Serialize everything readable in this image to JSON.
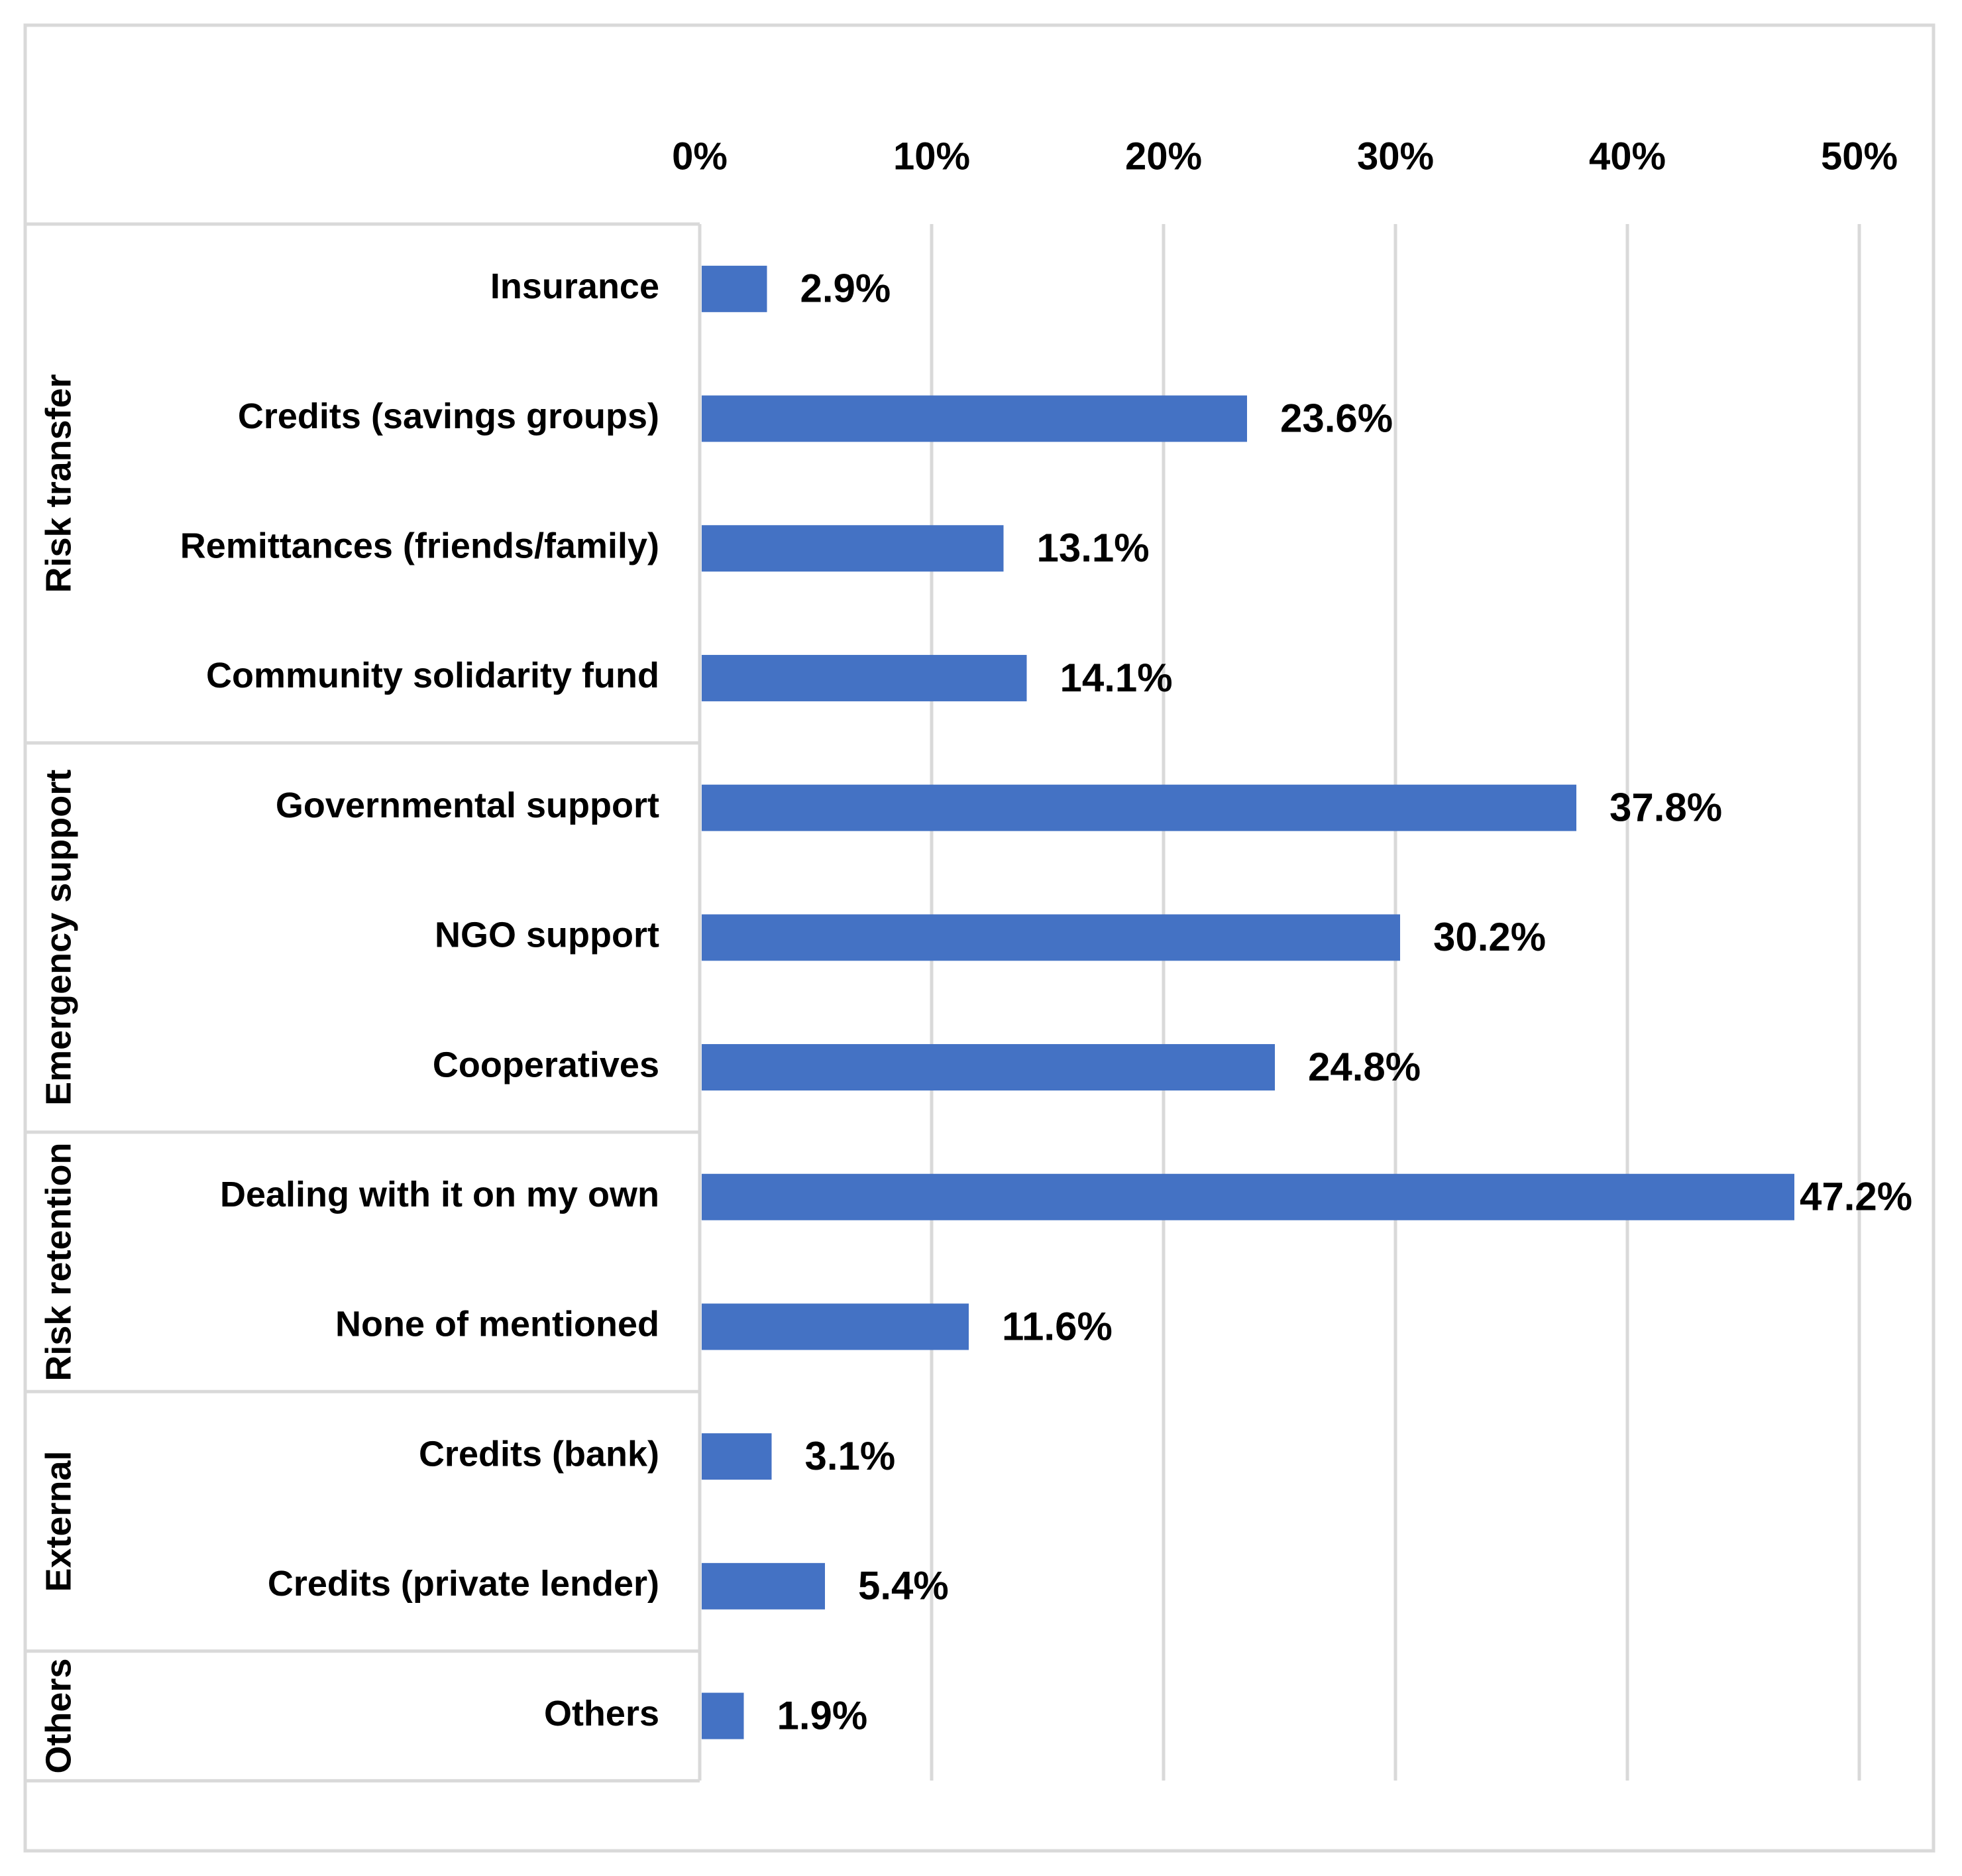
{
  "chart_data": {
    "type": "bar",
    "orientation": "horizontal",
    "title": "",
    "xlabel": "",
    "ylabel": "",
    "xlim": [
      0,
      50
    ],
    "x_ticks": [
      0,
      10,
      20,
      30,
      40,
      50
    ],
    "x_tick_labels": [
      "0%",
      "10%",
      "20%",
      "30%",
      "40%",
      "50%"
    ],
    "x_axis_position": "top",
    "grid": true,
    "groups": [
      {
        "name": "Risk transfer",
        "categories": [
          "Insurance",
          "Credits (savings groups)",
          "Remittances (friends/family)",
          "Community solidarity fund"
        ]
      },
      {
        "name": "Emergency support",
        "categories": [
          "Governmental support",
          "NGO support",
          "Cooperatives"
        ]
      },
      {
        "name": "Risk retention",
        "categories": [
          "Dealing with it on my own",
          "None of mentioned"
        ]
      },
      {
        "name": "External",
        "categories": [
          "Credits (bank)",
          "Credits (private lender)"
        ]
      },
      {
        "name": "Others",
        "categories": [
          "Others"
        ]
      }
    ],
    "categories": [
      "Insurance",
      "Credits (savings groups)",
      "Remittances (friends/family)",
      "Community solidarity fund",
      "Governmental support",
      "NGO support",
      "Cooperatives",
      "Dealing with it on my own",
      "None of mentioned",
      "Credits (bank)",
      "Credits (private lender)",
      "Others"
    ],
    "values": [
      2.9,
      23.6,
      13.1,
      14.1,
      37.8,
      30.2,
      24.8,
      47.2,
      11.6,
      3.1,
      5.4,
      1.9
    ],
    "value_labels": [
      "2.9%",
      "23.6%",
      "13.1%",
      "14.1%",
      "37.8%",
      "30.2%",
      "24.8%",
      "47.2%",
      "11.6%",
      "3.1%",
      "5.4%",
      "1.9%"
    ],
    "bar_color": "#4472C4",
    "grid_color": "#D9D9D9",
    "border_color": "#D9D9D9"
  }
}
